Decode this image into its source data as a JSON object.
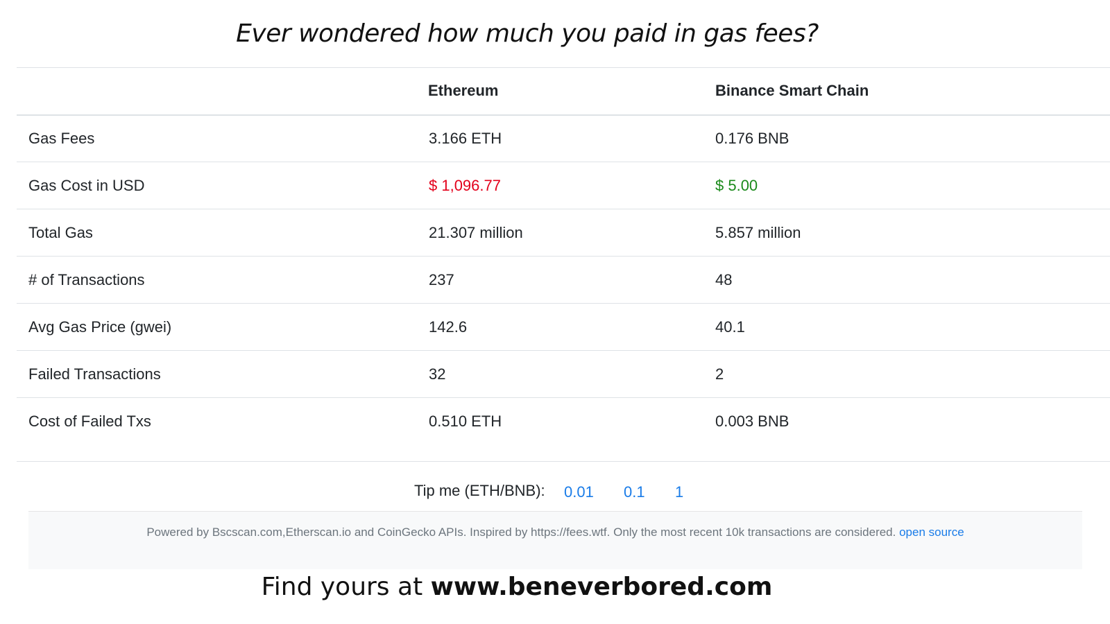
{
  "headline": "Ever wondered how much you paid in gas fees?",
  "table": {
    "columns": [
      "",
      "Ethereum",
      "Binance Smart Chain"
    ],
    "rows": [
      {
        "label": "Gas Fees",
        "eth": "3.166 ETH",
        "bsc": "0.176 BNB"
      },
      {
        "label": "Gas Cost in USD",
        "eth": "$ 1,096.77",
        "bsc": "$ 5.00"
      },
      {
        "label": "Total Gas",
        "eth": "21.307 million",
        "bsc": "5.857 million"
      },
      {
        "label": "# of Transactions",
        "eth": "237",
        "bsc": "48"
      },
      {
        "label": "Avg Gas Price (gwei)",
        "eth": "142.6",
        "bsc": "40.1"
      },
      {
        "label": "Failed Transactions",
        "eth": "32",
        "bsc": "2"
      },
      {
        "label": "Cost of Failed Txs",
        "eth": "0.510 ETH",
        "bsc": "0.003 BNB"
      }
    ]
  },
  "colors": {
    "eth_usd": "#e3001b",
    "bsc_usd": "#1a8a1a",
    "link": "#1a7ce8"
  },
  "tip": {
    "label": "Tip me (ETH/BNB):",
    "options": [
      "0.01",
      "0.1",
      "1"
    ]
  },
  "footer": {
    "text": "Powered by Bscscan.com,Etherscan.io and CoinGecko APIs. Inspired by https://fees.wtf. Only the most recent 10k transactions are considered.",
    "link_label": "open source"
  },
  "cta": {
    "prefix": "Find yours at ",
    "url": "www.beneverbored.com"
  }
}
